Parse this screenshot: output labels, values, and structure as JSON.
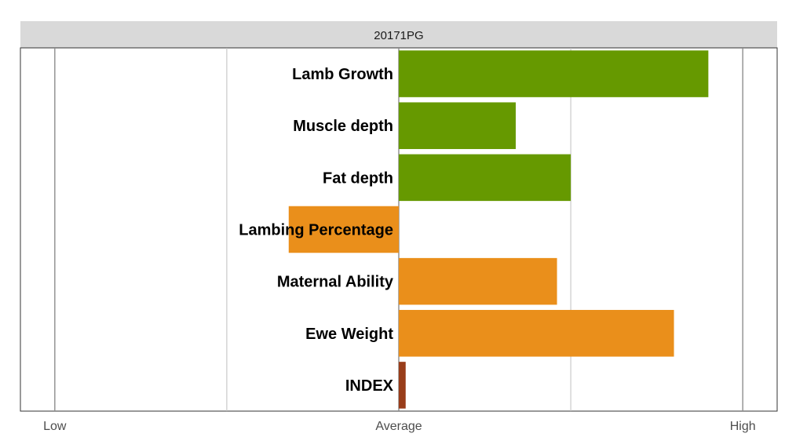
{
  "chart_data": {
    "type": "bar",
    "orientation": "horizontal",
    "facet_title": "20171PG",
    "categories": [
      "Lamb Growth",
      "Muscle depth",
      "Fat depth",
      "Lambing Percentage",
      "Maternal Ability",
      "Ewe Weight",
      "INDEX"
    ],
    "values": [
      0.9,
      0.34,
      0.5,
      -0.32,
      0.46,
      0.8,
      0.02
    ],
    "colors": [
      "#669900",
      "#669900",
      "#669900",
      "#ea8f1b",
      "#ea8f1b",
      "#ea8f1b",
      "#993d1a"
    ],
    "xlim": [
      -1.1,
      1.1
    ],
    "x_ticks": [
      {
        "value": -1,
        "label": "Low"
      },
      {
        "value": 0,
        "label": "Average"
      },
      {
        "value": 1,
        "label": "High"
      }
    ],
    "x_minor_gridlines": [
      -0.5,
      0.5
    ],
    "grid": true,
    "xlabel": "",
    "ylabel": "",
    "legend": "none"
  }
}
